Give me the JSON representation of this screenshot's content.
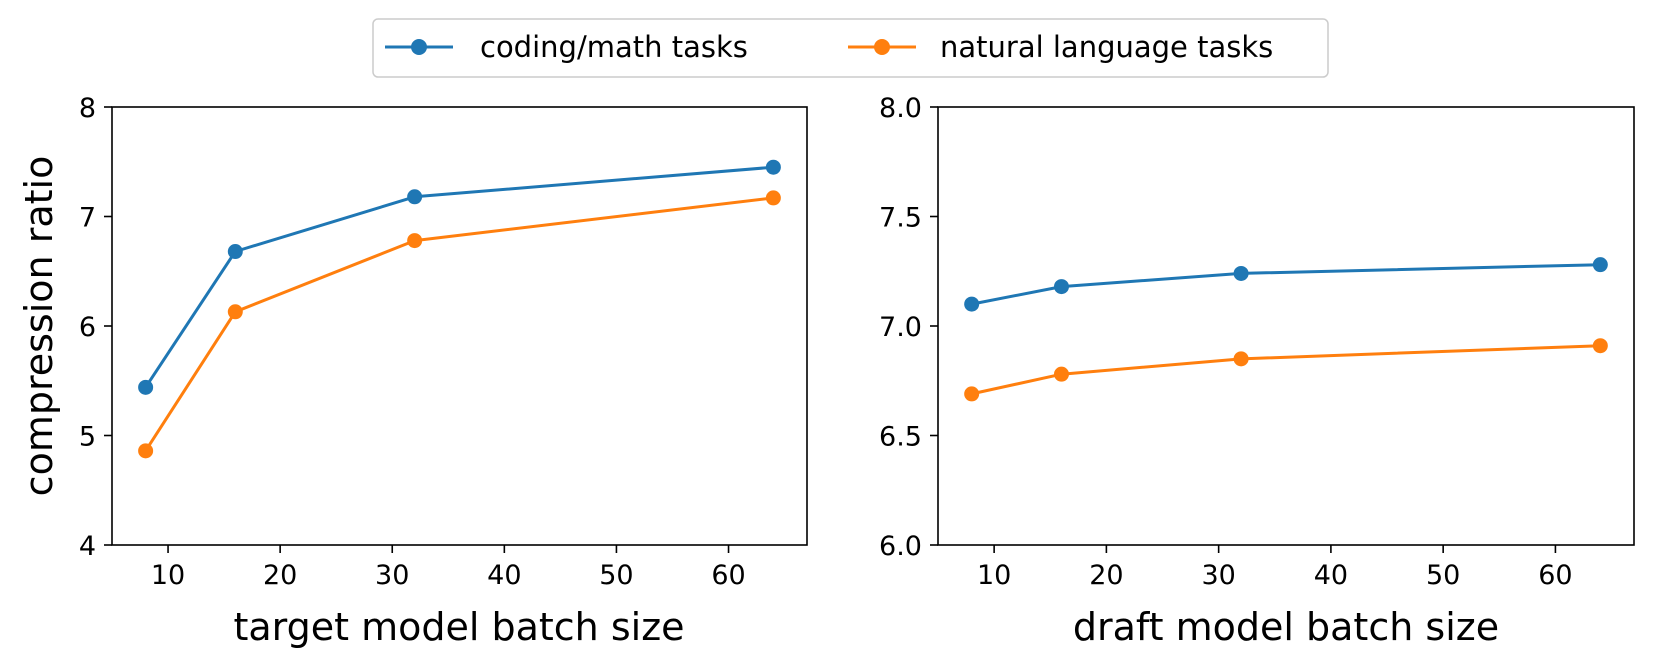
{
  "legend": {
    "placement": "top-center",
    "entries": [
      {
        "name": "coding/math tasks",
        "color": "#1f77b4"
      },
      {
        "name": "natural language tasks",
        "color": "#ff7f0e"
      }
    ]
  },
  "chart_data": [
    {
      "type": "line",
      "xlabel": "target model batch size",
      "ylabel": "compression ratio",
      "xlim": [
        5,
        67
      ],
      "ylim": [
        4,
        8
      ],
      "xticks": [
        10,
        20,
        30,
        40,
        50,
        60
      ],
      "yticks": [
        4,
        5,
        6,
        7,
        8
      ],
      "ytick_labels": [
        "4",
        "5",
        "6",
        "7",
        "8"
      ],
      "x": [
        8,
        16,
        32,
        64
      ],
      "series": [
        {
          "name": "coding/math tasks",
          "values": [
            5.44,
            6.68,
            7.18,
            7.45
          ]
        },
        {
          "name": "natural language tasks",
          "values": [
            4.86,
            6.13,
            6.78,
            7.17
          ]
        }
      ]
    },
    {
      "type": "line",
      "xlabel": "draft model batch size",
      "ylabel": "",
      "xlim": [
        5,
        67
      ],
      "ylim": [
        6.0,
        8.0
      ],
      "xticks": [
        10,
        20,
        30,
        40,
        50,
        60
      ],
      "yticks": [
        6.0,
        6.5,
        7.0,
        7.5,
        8.0
      ],
      "ytick_labels": [
        "6.0",
        "6.5",
        "7.0",
        "7.5",
        "8.0"
      ],
      "x": [
        8,
        16,
        32,
        64
      ],
      "series": [
        {
          "name": "coding/math tasks",
          "values": [
            7.1,
            7.18,
            7.24,
            7.28
          ]
        },
        {
          "name": "natural language tasks",
          "values": [
            6.69,
            6.78,
            6.85,
            6.91
          ]
        }
      ]
    }
  ]
}
